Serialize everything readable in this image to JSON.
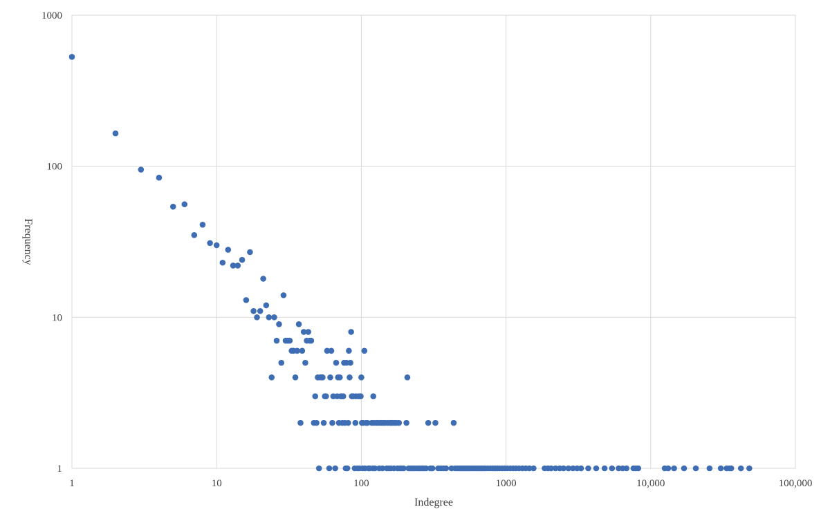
{
  "chart_data": {
    "type": "scatter",
    "title": "",
    "xlabel": "Indegree",
    "ylabel": "Frequency",
    "x_scale": "log",
    "y_scale": "log",
    "xlim": [
      1,
      100000
    ],
    "ylim": [
      1,
      1000
    ],
    "x_ticks": [
      "1",
      "10",
      "100",
      "1000",
      "10,000",
      "100,000"
    ],
    "y_ticks": [
      "1",
      "10",
      "100",
      "1000"
    ],
    "grid": true,
    "legend": "none",
    "marker_color": "#3e6db4",
    "grid_color": "#d9d9d9",
    "points": [
      [
        1,
        530
      ],
      [
        2,
        165
      ],
      [
        3,
        95
      ],
      [
        4,
        84
      ],
      [
        5,
        54
      ],
      [
        6,
        56
      ],
      [
        7,
        35
      ],
      [
        8,
        41
      ],
      [
        9,
        31
      ],
      [
        10,
        30
      ],
      [
        11,
        23
      ],
      [
        12,
        28
      ],
      [
        13,
        22
      ],
      [
        14,
        22
      ],
      [
        15,
        24
      ],
      [
        16,
        13
      ],
      [
        17,
        27
      ],
      [
        18,
        11
      ],
      [
        19,
        10
      ],
      [
        20,
        11
      ],
      [
        21,
        18
      ],
      [
        22,
        12
      ],
      [
        23,
        10
      ],
      [
        24,
        4
      ],
      [
        25,
        10
      ],
      [
        26,
        7
      ],
      [
        27,
        9
      ],
      [
        28,
        5
      ],
      [
        29,
        14
      ],
      [
        30,
        7
      ],
      [
        31,
        7
      ],
      [
        32,
        7
      ],
      [
        33,
        6
      ],
      [
        34,
        6
      ],
      [
        35,
        4
      ],
      [
        36,
        6
      ],
      [
        37,
        9
      ],
      [
        38,
        2
      ],
      [
        39,
        6
      ],
      [
        40,
        8
      ],
      [
        41,
        5
      ],
      [
        42,
        7
      ],
      [
        43,
        8
      ],
      [
        44,
        7
      ],
      [
        45,
        7
      ],
      [
        47,
        2
      ],
      [
        48,
        3
      ],
      [
        49,
        2
      ],
      [
        50,
        4
      ],
      [
        51,
        1
      ],
      [
        52,
        4
      ],
      [
        53,
        4
      ],
      [
        54,
        4
      ],
      [
        55,
        2
      ],
      [
        56,
        3
      ],
      [
        57,
        3
      ],
      [
        58,
        6
      ],
      [
        60,
        1
      ],
      [
        61,
        4
      ],
      [
        62,
        6
      ],
      [
        63,
        2
      ],
      [
        64,
        3
      ],
      [
        66,
        1
      ],
      [
        67,
        5
      ],
      [
        68,
        3
      ],
      [
        69,
        4
      ],
      [
        70,
        2
      ],
      [
        71,
        4
      ],
      [
        72,
        3
      ],
      [
        73,
        3
      ],
      [
        74,
        2
      ],
      [
        75,
        3
      ],
      [
        76,
        5
      ],
      [
        77,
        2
      ],
      [
        78,
        1
      ],
      [
        79,
        5
      ],
      [
        80,
        1
      ],
      [
        81,
        2
      ],
      [
        82,
        6
      ],
      [
        83,
        4
      ],
      [
        84,
        5
      ],
      [
        85,
        8
      ],
      [
        86,
        3
      ],
      [
        88,
        3
      ],
      [
        90,
        1
      ],
      [
        91,
        2
      ],
      [
        92,
        3
      ],
      [
        94,
        1
      ],
      [
        96,
        3
      ],
      [
        97,
        1
      ],
      [
        99,
        3
      ],
      [
        100,
        4
      ],
      [
        101,
        2
      ],
      [
        102,
        1
      ],
      [
        103,
        2
      ],
      [
        105,
        6
      ],
      [
        106,
        1
      ],
      [
        108,
        2
      ],
      [
        110,
        2
      ],
      [
        112,
        1
      ],
      [
        114,
        1
      ],
      [
        118,
        2
      ],
      [
        120,
        1
      ],
      [
        121,
        3
      ],
      [
        122,
        2
      ],
      [
        124,
        1
      ],
      [
        127,
        2
      ],
      [
        130,
        2
      ],
      [
        133,
        1
      ],
      [
        135,
        2
      ],
      [
        138,
        2
      ],
      [
        140,
        1
      ],
      [
        142,
        2
      ],
      [
        146,
        2
      ],
      [
        150,
        1
      ],
      [
        152,
        2
      ],
      [
        155,
        1
      ],
      [
        158,
        2
      ],
      [
        160,
        1
      ],
      [
        162,
        2
      ],
      [
        165,
        2
      ],
      [
        168,
        1
      ],
      [
        170,
        2
      ],
      [
        175,
        2
      ],
      [
        178,
        1
      ],
      [
        182,
        2
      ],
      [
        185,
        1
      ],
      [
        190,
        1
      ],
      [
        196,
        1
      ],
      [
        205,
        2
      ],
      [
        208,
        4
      ],
      [
        212,
        1
      ],
      [
        218,
        1
      ],
      [
        225,
        1
      ],
      [
        232,
        1
      ],
      [
        240,
        1
      ],
      [
        248,
        1
      ],
      [
        255,
        1
      ],
      [
        263,
        1
      ],
      [
        270,
        1
      ],
      [
        280,
        1
      ],
      [
        290,
        2
      ],
      [
        300,
        1
      ],
      [
        310,
        1
      ],
      [
        325,
        2
      ],
      [
        340,
        1
      ],
      [
        355,
        1
      ],
      [
        370,
        1
      ],
      [
        385,
        1
      ],
      [
        420,
        1
      ],
      [
        435,
        2
      ],
      [
        445,
        1
      ],
      [
        460,
        1
      ],
      [
        475,
        1
      ],
      [
        490,
        1
      ],
      [
        505,
        1
      ],
      [
        520,
        1
      ],
      [
        535,
        1
      ],
      [
        550,
        1
      ],
      [
        565,
        1
      ],
      [
        580,
        1
      ],
      [
        600,
        1
      ],
      [
        620,
        1
      ],
      [
        640,
        1
      ],
      [
        660,
        1
      ],
      [
        680,
        1
      ],
      [
        700,
        1
      ],
      [
        720,
        1
      ],
      [
        750,
        1
      ],
      [
        780,
        1
      ],
      [
        810,
        1
      ],
      [
        840,
        1
      ],
      [
        870,
        1
      ],
      [
        900,
        1
      ],
      [
        940,
        1
      ],
      [
        980,
        1
      ],
      [
        1020,
        1
      ],
      [
        1070,
        1
      ],
      [
        1120,
        1
      ],
      [
        1170,
        1
      ],
      [
        1230,
        1
      ],
      [
        1300,
        1
      ],
      [
        1370,
        1
      ],
      [
        1450,
        1
      ],
      [
        1550,
        1
      ],
      [
        1850,
        1
      ],
      [
        1950,
        1
      ],
      [
        2050,
        1
      ],
      [
        2200,
        1
      ],
      [
        2350,
        1
      ],
      [
        2500,
        1
      ],
      [
        2700,
        1
      ],
      [
        2900,
        1
      ],
      [
        3100,
        1
      ],
      [
        3300,
        1
      ],
      [
        3700,
        1
      ],
      [
        4200,
        1
      ],
      [
        4800,
        1
      ],
      [
        5400,
        1
      ],
      [
        6000,
        1
      ],
      [
        6400,
        1
      ],
      [
        6800,
        1
      ],
      [
        7600,
        1
      ],
      [
        7900,
        1
      ],
      [
        8200,
        1
      ],
      [
        12500,
        1
      ],
      [
        13200,
        1
      ],
      [
        14500,
        1
      ],
      [
        17000,
        1
      ],
      [
        20500,
        1
      ],
      [
        25500,
        1
      ],
      [
        30500,
        1
      ],
      [
        33500,
        1
      ],
      [
        35000,
        1
      ],
      [
        36000,
        1
      ],
      [
        42000,
        1
      ],
      [
        48000,
        1
      ]
    ]
  }
}
